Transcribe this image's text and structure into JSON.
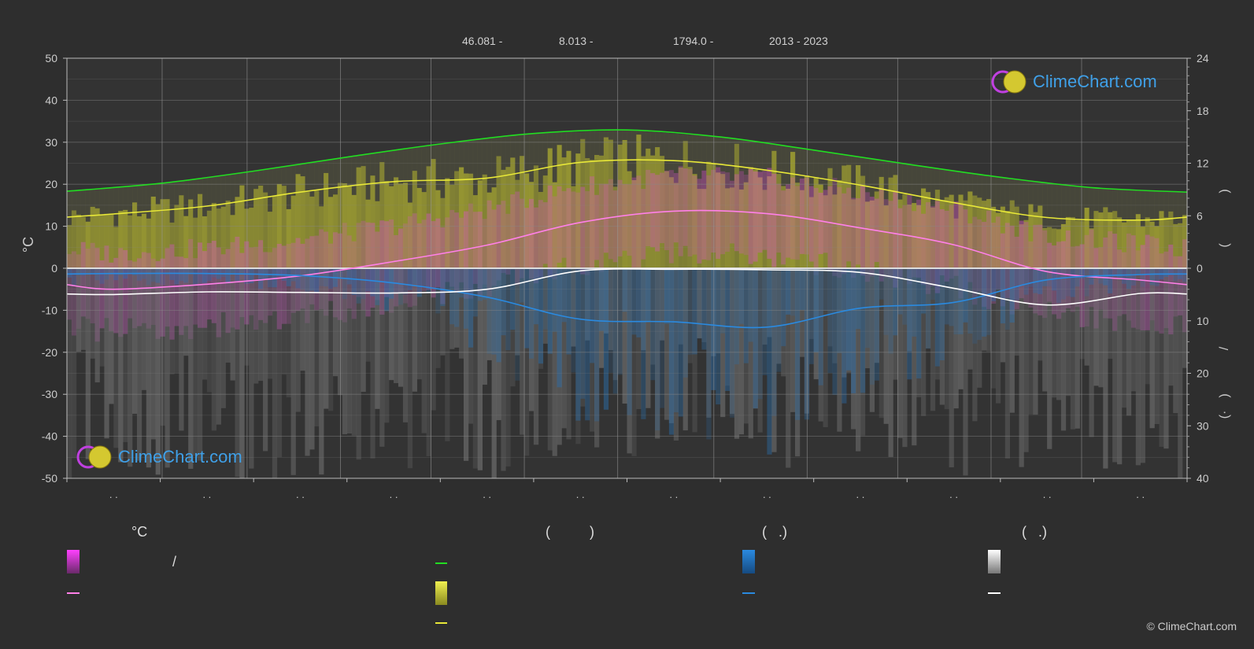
{
  "header": {
    "lat": "46.081 -",
    "lon": "8.013 -",
    "elevation": "1794.0 -",
    "period": "2013 - 2023"
  },
  "logo_text": "ClimeChart.com",
  "copyright": "© ClimeChart.com",
  "legend": {
    "temp_unit": "°C",
    "slash": "/",
    "paren_sun": "(          )",
    "paren_rain": "(   .)",
    "paren_snow": "(   .)"
  },
  "colors": {
    "background": "#2e2e2e",
    "daylight": "#22dd22",
    "sunshine": "#e8e838",
    "temp_mean": "#ff80e8",
    "temp_band": "#e040e0",
    "precip": "#2a8ae0",
    "snow": "#ffffff",
    "logo": "#3fa0e8"
  },
  "chart_data": {
    "type": "area",
    "x_tick_labels": [
      ". .",
      ". .",
      ". .",
      ". .",
      ". .",
      ". .",
      ". .",
      ". .",
      ". .",
      ". .",
      ". .",
      ". ."
    ],
    "ylabel_left": "°C",
    "ylim_left": [
      -50,
      50
    ],
    "y_ticks_left": [
      "50",
      "40",
      "30",
      "20",
      "10",
      "0",
      "-10",
      "-20",
      "-30",
      "-40",
      "-50"
    ],
    "y_ticks_right_hours": [
      "24",
      "18",
      "12",
      "6",
      "0"
    ],
    "y_ticks_right_precip": [
      "10",
      "20",
      "30",
      "40"
    ],
    "ylim_right_hours": [
      0,
      24
    ],
    "ylim_right_precip_mm": [
      0,
      40
    ],
    "right_axis_glyphs": [
      ")",
      "(",
      "/",
      ")",
      "(·"
    ],
    "grid": true,
    "series": [
      {
        "key": "daylight",
        "unit": "h",
        "x": [
          0,
          1,
          2,
          3,
          4,
          5,
          6,
          7,
          8,
          9,
          10,
          11,
          12
        ],
        "values": [
          8.8,
          9.7,
          11.1,
          12.7,
          14.2,
          15.4,
          15.8,
          15.0,
          13.5,
          11.9,
          10.4,
          9.2,
          8.7
        ]
      },
      {
        "key": "sunshine",
        "unit": "h",
        "x": [
          0.5,
          1.5,
          2.5,
          3.5,
          4.5,
          5.5,
          6.5,
          7.5,
          8.5,
          9.5,
          10.5,
          11.5
        ],
        "values": [
          6.2,
          7.1,
          8.7,
          9.9,
          10.3,
          12.1,
          12.3,
          11.2,
          9.5,
          7.5,
          5.8,
          5.5
        ]
      },
      {
        "key": "temp_mean",
        "unit": "°C",
        "x": [
          0.5,
          1.5,
          2.5,
          3.5,
          4.5,
          5.5,
          6.5,
          7.5,
          8.5,
          9.5,
          10.5,
          11.5
        ],
        "values": [
          -5.0,
          -3.8,
          -1.8,
          1.6,
          5.5,
          10.9,
          13.6,
          13.0,
          9.6,
          5.6,
          -0.8,
          -2.8
        ]
      },
      {
        "key": "precip",
        "unit": "mm",
        "x": [
          0.5,
          1.5,
          2.5,
          3.5,
          4.5,
          5.5,
          6.5,
          7.5,
          8.5,
          9.5,
          10.5,
          11.5
        ],
        "values": [
          1.0,
          1.0,
          1.4,
          2.8,
          5.5,
          9.7,
          10.2,
          11.2,
          7.6,
          6.5,
          2.2,
          1.2
        ]
      },
      {
        "key": "snow",
        "unit": "mm",
        "x": [
          0.5,
          1.5,
          2.5,
          3.5,
          4.5,
          5.5,
          6.5,
          7.5,
          8.5,
          9.5,
          10.5,
          11.5
        ],
        "values": [
          5.0,
          4.5,
          4.6,
          4.7,
          4.0,
          0.5,
          0.2,
          0.3,
          0.8,
          3.8,
          7.0,
          4.8
        ]
      }
    ]
  }
}
